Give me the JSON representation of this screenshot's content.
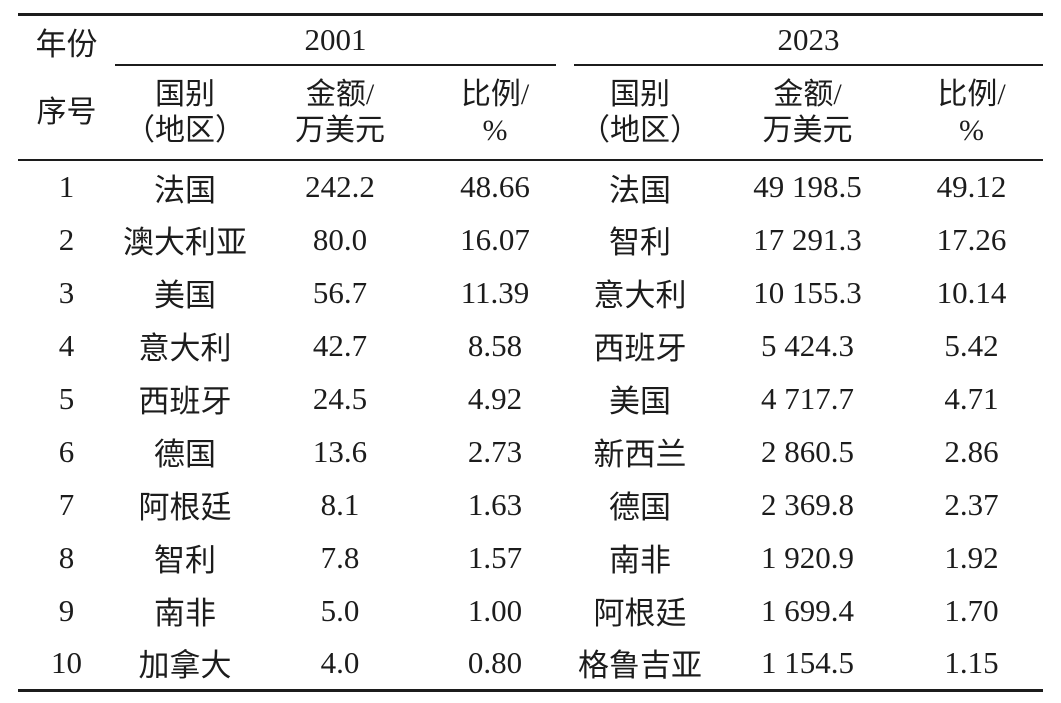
{
  "table": {
    "year_label": "年份",
    "index_label": "序号",
    "groups": [
      {
        "year": "2001"
      },
      {
        "year": "2023"
      }
    ],
    "columns": {
      "country_l1": "国别",
      "country_l2": "（地区）",
      "amount_l1": "金额/",
      "amount_l2": "万美元",
      "ratio_l1": "比例/",
      "ratio_l2": "%"
    },
    "rows": [
      {
        "no": "1",
        "y2001": {
          "country": "法国",
          "amount": "242.2",
          "ratio": "48.66"
        },
        "y2023": {
          "country": "法国",
          "amount": "49 198.5",
          "ratio": "49.12"
        }
      },
      {
        "no": "2",
        "y2001": {
          "country": "澳大利亚",
          "amount": "80.0",
          "ratio": "16.07"
        },
        "y2023": {
          "country": "智利",
          "amount": "17 291.3",
          "ratio": "17.26"
        }
      },
      {
        "no": "3",
        "y2001": {
          "country": "美国",
          "amount": "56.7",
          "ratio": "11.39"
        },
        "y2023": {
          "country": "意大利",
          "amount": "10 155.3",
          "ratio": "10.14"
        }
      },
      {
        "no": "4",
        "y2001": {
          "country": "意大利",
          "amount": "42.7",
          "ratio": "8.58"
        },
        "y2023": {
          "country": "西班牙",
          "amount": "5 424.3",
          "ratio": "5.42"
        }
      },
      {
        "no": "5",
        "y2001": {
          "country": "西班牙",
          "amount": "24.5",
          "ratio": "4.92"
        },
        "y2023": {
          "country": "美国",
          "amount": "4 717.7",
          "ratio": "4.71"
        }
      },
      {
        "no": "6",
        "y2001": {
          "country": "德国",
          "amount": "13.6",
          "ratio": "2.73"
        },
        "y2023": {
          "country": "新西兰",
          "amount": "2 860.5",
          "ratio": "2.86"
        }
      },
      {
        "no": "7",
        "y2001": {
          "country": "阿根廷",
          "amount": "8.1",
          "ratio": "1.63"
        },
        "y2023": {
          "country": "德国",
          "amount": "2 369.8",
          "ratio": "2.37"
        }
      },
      {
        "no": "8",
        "y2001": {
          "country": "智利",
          "amount": "7.8",
          "ratio": "1.57"
        },
        "y2023": {
          "country": "南非",
          "amount": "1 920.9",
          "ratio": "1.92"
        }
      },
      {
        "no": "9",
        "y2001": {
          "country": "南非",
          "amount": "5.0",
          "ratio": "1.00"
        },
        "y2023": {
          "country": "阿根廷",
          "amount": "1 699.4",
          "ratio": "1.70"
        }
      },
      {
        "no": "10",
        "y2001": {
          "country": "加拿大",
          "amount": "4.0",
          "ratio": "0.80"
        },
        "y2023": {
          "country": "格鲁吉亚",
          "amount": "1 154.5",
          "ratio": "1.15"
        }
      }
    ]
  },
  "chart_data": {
    "type": "table",
    "columns": [
      "序号",
      "国别（地区） 2001",
      "金额/万美元 2001",
      "比例/% 2001",
      "国别（地区） 2023",
      "金额/万美元 2023",
      "比例/% 2023"
    ],
    "rows": [
      [
        "1",
        "法国",
        242.2,
        48.66,
        "法国",
        49198.5,
        49.12
      ],
      [
        "2",
        "澳大利亚",
        80.0,
        16.07,
        "智利",
        17291.3,
        17.26
      ],
      [
        "3",
        "美国",
        56.7,
        11.39,
        "意大利",
        10155.3,
        10.14
      ],
      [
        "4",
        "意大利",
        42.7,
        8.58,
        "西班牙",
        5424.3,
        5.42
      ],
      [
        "5",
        "西班牙",
        24.5,
        4.92,
        "美国",
        4717.7,
        4.71
      ],
      [
        "6",
        "德国",
        13.6,
        2.73,
        "新西兰",
        2860.5,
        2.86
      ],
      [
        "7",
        "阿根廷",
        8.1,
        1.63,
        "德国",
        2369.8,
        2.37
      ],
      [
        "8",
        "智利",
        7.8,
        1.57,
        "南非",
        1920.9,
        1.92
      ],
      [
        "9",
        "南非",
        5.0,
        1.0,
        "阿根廷",
        1699.4,
        1.7
      ],
      [
        "10",
        "加拿大",
        4.0,
        0.8,
        "格鲁吉亚",
        1154.5,
        1.15
      ]
    ]
  }
}
